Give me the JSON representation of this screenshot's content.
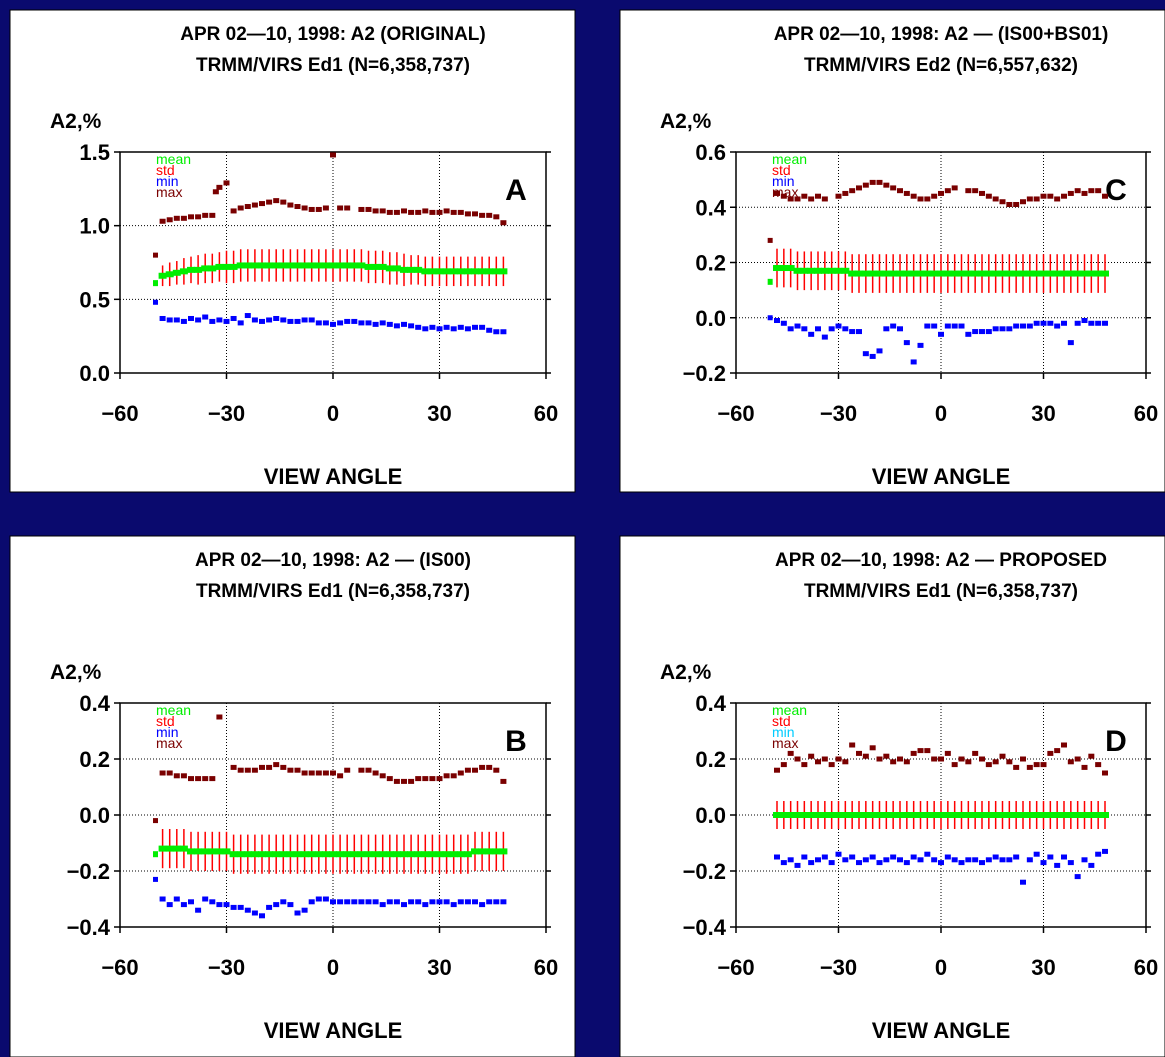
{
  "colors": {
    "background": "#0a0a6e",
    "panel": "#ffffff",
    "mean": "#00ee00",
    "std": "#ff0000",
    "min": "#0000ff",
    "min_alt": "#00ccff",
    "max": "#7a0000"
  },
  "chart_data": [
    {
      "type": "scatter",
      "panel_letter": "A",
      "title_line1": "APR 02—10, 1998: A2 (ORIGINAL)",
      "title_line2": "TRMM/VIRS Ed1 (N=6,358,737)",
      "ylabel": "A2,%",
      "xlabel": "VIEW ANGLE",
      "xlim": [
        -60,
        60
      ],
      "ylim": [
        0.0,
        1.5
      ],
      "xticks": [
        -60,
        -30,
        0,
        30,
        60
      ],
      "yticks": [
        0.0,
        0.5,
        1.0,
        1.5
      ],
      "ytick_labels": [
        "0.0",
        "0.5",
        "1.0",
        "1.5"
      ],
      "grid": true,
      "legend": {
        "position": "top-left",
        "entries": [
          "mean",
          "std",
          "min",
          "max"
        ]
      },
      "x_start": -48,
      "x_step": 2,
      "first_point": {
        "x": -50,
        "mean": 0.61,
        "min": 0.48,
        "max": 0.8
      },
      "mean": [
        0.66,
        0.67,
        0.68,
        0.69,
        0.7,
        0.7,
        0.71,
        0.71,
        0.72,
        0.72,
        0.72,
        0.73,
        0.73,
        0.73,
        0.73,
        0.73,
        0.73,
        0.73,
        0.73,
        0.73,
        0.73,
        0.73,
        0.73,
        0.73,
        0.73,
        0.73,
        0.73,
        0.73,
        0.73,
        0.72,
        0.72,
        0.72,
        0.71,
        0.71,
        0.7,
        0.7,
        0.7,
        0.69,
        0.69,
        0.69,
        0.69,
        0.69,
        0.69,
        0.69,
        0.69,
        0.69,
        0.69,
        0.69,
        0.69
      ],
      "std": [
        0.07,
        0.08,
        0.08,
        0.09,
        0.09,
        0.1,
        0.1,
        0.1,
        0.1,
        0.11,
        0.11,
        0.11,
        0.11,
        0.11,
        0.11,
        0.11,
        0.11,
        0.11,
        0.11,
        0.11,
        0.11,
        0.11,
        0.11,
        0.11,
        0.11,
        0.11,
        0.11,
        0.11,
        0.11,
        0.11,
        0.11,
        0.11,
        0.11,
        0.11,
        0.11,
        0.1,
        0.1,
        0.1,
        0.1,
        0.1,
        0.1,
        0.1,
        0.1,
        0.1,
        0.1,
        0.1,
        0.1,
        0.1,
        0.1
      ],
      "min": [
        0.37,
        0.36,
        0.36,
        0.35,
        0.37,
        0.36,
        0.38,
        0.35,
        0.36,
        0.35,
        0.37,
        0.34,
        0.39,
        0.36,
        0.35,
        0.36,
        0.37,
        0.36,
        0.35,
        0.35,
        0.36,
        0.36,
        0.34,
        0.34,
        0.33,
        0.34,
        0.35,
        0.35,
        0.34,
        0.34,
        0.33,
        0.34,
        0.33,
        0.32,
        0.33,
        0.32,
        0.31,
        0.3,
        0.31,
        0.3,
        0.31,
        0.3,
        0.31,
        0.3,
        0.31,
        0.31,
        0.29,
        0.28,
        0.28
      ],
      "max": [
        1.03,
        1.04,
        1.05,
        1.05,
        1.06,
        1.06,
        1.07,
        1.07,
        1.26,
        1.29,
        1.1,
        1.12,
        1.13,
        1.14,
        1.15,
        1.16,
        1.17,
        1.16,
        1.14,
        1.13,
        1.12,
        1.11,
        1.11,
        1.12,
        1.48,
        1.12,
        1.12,
        null,
        1.11,
        1.11,
        1.1,
        1.1,
        1.09,
        1.09,
        1.1,
        1.09,
        1.09,
        1.1,
        1.09,
        1.09,
        1.1,
        1.09,
        1.09,
        1.08,
        1.08,
        1.07,
        1.07,
        1.06,
        1.02
      ],
      "extra_max": [
        {
          "x": -33,
          "y": 1.23
        }
      ]
    },
    {
      "type": "scatter",
      "panel_letter": "C",
      "title_line1": "APR 02—10, 1998: A2 — (IS00+BS01)",
      "title_line2": "TRMM/VIRS Ed2 (N=6,557,632)",
      "ylabel": "A2,%",
      "xlabel": "VIEW ANGLE",
      "xlim": [
        -60,
        60
      ],
      "ylim": [
        -0.2,
        0.6
      ],
      "xticks": [
        -60,
        -30,
        0,
        30,
        60
      ],
      "yticks": [
        -0.2,
        0.0,
        0.2,
        0.4,
        0.6
      ],
      "ytick_labels": [
        "−0.2",
        "0.0",
        "0.2",
        "0.4",
        "0.6"
      ],
      "grid": true,
      "legend": {
        "position": "top-left",
        "entries": [
          "mean",
          "std",
          "min",
          "max"
        ]
      },
      "x_start": -48,
      "x_step": 2,
      "first_point": {
        "x": -50,
        "mean": 0.13,
        "min": 0.0,
        "max": 0.28
      },
      "mean": [
        0.18,
        0.18,
        0.18,
        0.17,
        0.17,
        0.17,
        0.17,
        0.17,
        0.17,
        0.17,
        0.17,
        0.16,
        0.16,
        0.16,
        0.16,
        0.16,
        0.16,
        0.16,
        0.16,
        0.16,
        0.16,
        0.16,
        0.16,
        0.16,
        0.16,
        0.16,
        0.16,
        0.16,
        0.16,
        0.16,
        0.16,
        0.16,
        0.16,
        0.16,
        0.16,
        0.16,
        0.16,
        0.16,
        0.16,
        0.16,
        0.16,
        0.16,
        0.16,
        0.16,
        0.16,
        0.16,
        0.16,
        0.16,
        0.16
      ],
      "std": [
        0.07,
        0.07,
        0.07,
        0.07,
        0.07,
        0.07,
        0.07,
        0.07,
        0.07,
        0.07,
        0.07,
        0.07,
        0.07,
        0.07,
        0.07,
        0.07,
        0.07,
        0.07,
        0.07,
        0.07,
        0.07,
        0.07,
        0.07,
        0.07,
        0.07,
        0.07,
        0.07,
        0.07,
        0.07,
        0.07,
        0.07,
        0.07,
        0.07,
        0.07,
        0.07,
        0.07,
        0.07,
        0.07,
        0.07,
        0.07,
        0.07,
        0.07,
        0.07,
        0.07,
        0.07,
        0.07,
        0.07,
        0.07,
        0.07
      ],
      "min": [
        -0.01,
        -0.02,
        -0.04,
        -0.03,
        -0.04,
        -0.06,
        -0.04,
        -0.07,
        -0.04,
        -0.03,
        -0.04,
        -0.05,
        -0.05,
        -0.13,
        -0.14,
        -0.12,
        -0.04,
        -0.03,
        -0.04,
        -0.09,
        -0.16,
        -0.1,
        -0.03,
        -0.03,
        -0.06,
        -0.03,
        -0.03,
        -0.03,
        -0.06,
        -0.05,
        -0.05,
        -0.05,
        -0.04,
        -0.04,
        -0.04,
        -0.03,
        -0.03,
        -0.03,
        -0.02,
        -0.02,
        -0.02,
        -0.03,
        -0.02,
        -0.09,
        -0.02,
        -0.01,
        -0.02,
        -0.02,
        -0.02
      ],
      "max": [
        0.45,
        0.44,
        0.43,
        0.43,
        0.44,
        0.43,
        0.44,
        0.43,
        null,
        0.44,
        0.45,
        0.46,
        0.47,
        0.48,
        0.49,
        0.49,
        0.48,
        0.47,
        0.46,
        0.45,
        0.44,
        0.43,
        0.43,
        0.44,
        0.45,
        0.46,
        0.47,
        null,
        0.46,
        0.46,
        0.45,
        0.44,
        0.43,
        0.42,
        0.41,
        0.41,
        0.42,
        0.43,
        0.43,
        0.44,
        0.44,
        0.43,
        0.44,
        0.45,
        0.46,
        0.45,
        0.46,
        0.46,
        0.44
      ],
      "extra_max": []
    },
    {
      "type": "scatter",
      "panel_letter": "B",
      "title_line1": "APR 02—10, 1998: A2 — (IS00)",
      "title_line2": "TRMM/VIRS Ed1 (N=6,358,737)",
      "ylabel": "A2,%",
      "xlabel": "VIEW ANGLE",
      "xlim": [
        -60,
        60
      ],
      "ylim": [
        -0.4,
        0.4
      ],
      "xticks": [
        -60,
        -30,
        0,
        30,
        60
      ],
      "yticks": [
        -0.4,
        -0.2,
        0.0,
        0.2,
        0.4
      ],
      "ytick_labels": [
        "−0.4",
        "−0.2",
        "0.0",
        "0.2",
        "0.4"
      ],
      "grid": true,
      "legend": {
        "position": "top-left",
        "entries": [
          "mean",
          "std",
          "min",
          "max"
        ]
      },
      "x_start": -48,
      "x_step": 2,
      "first_point": {
        "x": -50,
        "mean": -0.14,
        "min": -0.23,
        "max": -0.02
      },
      "mean": [
        -0.12,
        -0.12,
        -0.12,
        -0.12,
        -0.13,
        -0.13,
        -0.13,
        -0.13,
        -0.13,
        -0.13,
        -0.14,
        -0.14,
        -0.14,
        -0.14,
        -0.14,
        -0.14,
        -0.14,
        -0.14,
        -0.14,
        -0.14,
        -0.14,
        -0.14,
        -0.14,
        -0.14,
        -0.14,
        -0.14,
        -0.14,
        -0.14,
        -0.14,
        -0.14,
        -0.14,
        -0.14,
        -0.14,
        -0.14,
        -0.14,
        -0.14,
        -0.14,
        -0.14,
        -0.14,
        -0.14,
        -0.14,
        -0.14,
        -0.14,
        -0.14,
        -0.13,
        -0.13,
        -0.13,
        -0.13,
        -0.13
      ],
      "std": [
        0.07,
        0.07,
        0.07,
        0.07,
        0.07,
        0.07,
        0.07,
        0.07,
        0.07,
        0.07,
        0.07,
        0.07,
        0.07,
        0.07,
        0.07,
        0.07,
        0.07,
        0.07,
        0.07,
        0.07,
        0.07,
        0.07,
        0.07,
        0.07,
        0.07,
        0.07,
        0.07,
        0.07,
        0.07,
        0.07,
        0.07,
        0.07,
        0.07,
        0.07,
        0.07,
        0.07,
        0.07,
        0.07,
        0.07,
        0.07,
        0.07,
        0.07,
        0.07,
        0.07,
        0.07,
        0.07,
        0.07,
        0.07,
        0.07
      ],
      "min": [
        -0.3,
        -0.32,
        -0.3,
        -0.32,
        -0.31,
        -0.34,
        -0.3,
        -0.31,
        -0.32,
        -0.32,
        -0.33,
        -0.33,
        -0.34,
        -0.35,
        -0.36,
        -0.33,
        -0.32,
        -0.31,
        -0.32,
        -0.35,
        -0.34,
        -0.31,
        -0.3,
        -0.3,
        -0.31,
        -0.31,
        -0.31,
        -0.31,
        -0.31,
        -0.31,
        -0.31,
        -0.32,
        -0.31,
        -0.31,
        -0.32,
        -0.31,
        -0.31,
        -0.32,
        -0.31,
        -0.31,
        -0.31,
        -0.32,
        -0.31,
        -0.31,
        -0.31,
        -0.32,
        -0.31,
        -0.31,
        -0.31
      ],
      "max": [
        0.15,
        0.15,
        0.14,
        0.14,
        0.13,
        0.13,
        0.13,
        0.13,
        0.35,
        null,
        0.17,
        0.16,
        0.16,
        0.16,
        0.17,
        0.17,
        0.18,
        0.17,
        0.16,
        0.16,
        0.15,
        0.15,
        0.15,
        0.15,
        0.15,
        0.14,
        0.16,
        null,
        0.16,
        0.16,
        0.15,
        0.14,
        0.13,
        0.12,
        0.12,
        0.12,
        0.13,
        0.13,
        0.13,
        0.13,
        0.14,
        0.14,
        0.15,
        0.16,
        0.16,
        0.17,
        0.17,
        0.16,
        0.12
      ],
      "extra_max": []
    },
    {
      "type": "scatter",
      "panel_letter": "D",
      "title_line1": "APR 02—10, 1998: A2 — PROPOSED",
      "title_line2": "TRMM/VIRS Ed1 (N=6,358,737)",
      "ylabel": "A2,%",
      "xlabel": "VIEW ANGLE",
      "xlim": [
        -60,
        60
      ],
      "ylim": [
        -0.4,
        0.4
      ],
      "xticks": [
        -60,
        -30,
        0,
        30,
        60
      ],
      "yticks": [
        -0.4,
        -0.2,
        0.0,
        0.2,
        0.4
      ],
      "ytick_labels": [
        "−0.4",
        "−0.2",
        "0.0",
        "0.2",
        "0.4"
      ],
      "grid": true,
      "legend": {
        "position": "top-left",
        "entries": [
          "mean",
          "std",
          "min",
          "max"
        ]
      },
      "x_start": -48,
      "x_step": 2,
      "first_point": null,
      "mean": [
        0.0,
        0.0,
        0.0,
        0.0,
        0.0,
        0.0,
        0.0,
        0.0,
        0.0,
        0.0,
        0.0,
        0.0,
        0.0,
        0.0,
        0.0,
        0.0,
        0.0,
        0.0,
        0.0,
        0.0,
        0.0,
        0.0,
        0.0,
        0.0,
        0.0,
        0.0,
        0.0,
        0.0,
        0.0,
        0.0,
        0.0,
        0.0,
        0.0,
        0.0,
        0.0,
        0.0,
        0.0,
        0.0,
        0.0,
        0.0,
        0.0,
        0.0,
        0.0,
        0.0,
        0.0,
        0.0,
        0.0,
        0.0,
        0.0
      ],
      "std": [
        0.05,
        0.05,
        0.05,
        0.05,
        0.05,
        0.05,
        0.05,
        0.05,
        0.05,
        0.05,
        0.05,
        0.05,
        0.05,
        0.05,
        0.05,
        0.05,
        0.05,
        0.05,
        0.05,
        0.05,
        0.05,
        0.05,
        0.05,
        0.05,
        0.05,
        0.05,
        0.05,
        0.05,
        0.05,
        0.05,
        0.05,
        0.05,
        0.05,
        0.05,
        0.05,
        0.05,
        0.05,
        0.05,
        0.05,
        0.05,
        0.05,
        0.05,
        0.05,
        0.05,
        0.05,
        0.05,
        0.05,
        0.05,
        0.05
      ],
      "min": [
        -0.15,
        -0.17,
        -0.16,
        -0.18,
        -0.15,
        -0.17,
        -0.16,
        -0.15,
        -0.17,
        -0.14,
        -0.16,
        -0.15,
        -0.17,
        -0.16,
        -0.15,
        -0.17,
        -0.16,
        -0.15,
        -0.16,
        -0.17,
        -0.15,
        -0.16,
        -0.14,
        -0.16,
        -0.17,
        -0.15,
        -0.16,
        -0.17,
        -0.16,
        -0.16,
        -0.17,
        -0.16,
        -0.15,
        -0.16,
        -0.16,
        -0.15,
        -0.24,
        -0.16,
        -0.14,
        -0.17,
        -0.15,
        -0.18,
        -0.15,
        -0.17,
        -0.22,
        -0.16,
        -0.18,
        -0.14,
        -0.13
      ],
      "max": [
        0.16,
        0.18,
        0.22,
        0.2,
        0.18,
        0.21,
        0.19,
        0.2,
        0.18,
        0.2,
        0.19,
        0.25,
        0.22,
        0.21,
        0.24,
        0.2,
        0.21,
        0.19,
        0.2,
        0.19,
        0.22,
        0.23,
        0.23,
        0.2,
        0.2,
        0.22,
        0.18,
        0.2,
        0.19,
        0.22,
        0.2,
        0.18,
        0.19,
        0.21,
        0.19,
        0.17,
        0.2,
        0.17,
        0.18,
        0.18,
        0.22,
        0.23,
        0.25,
        0.19,
        0.2,
        0.17,
        0.21,
        0.18,
        0.15
      ],
      "extra_max": []
    }
  ]
}
